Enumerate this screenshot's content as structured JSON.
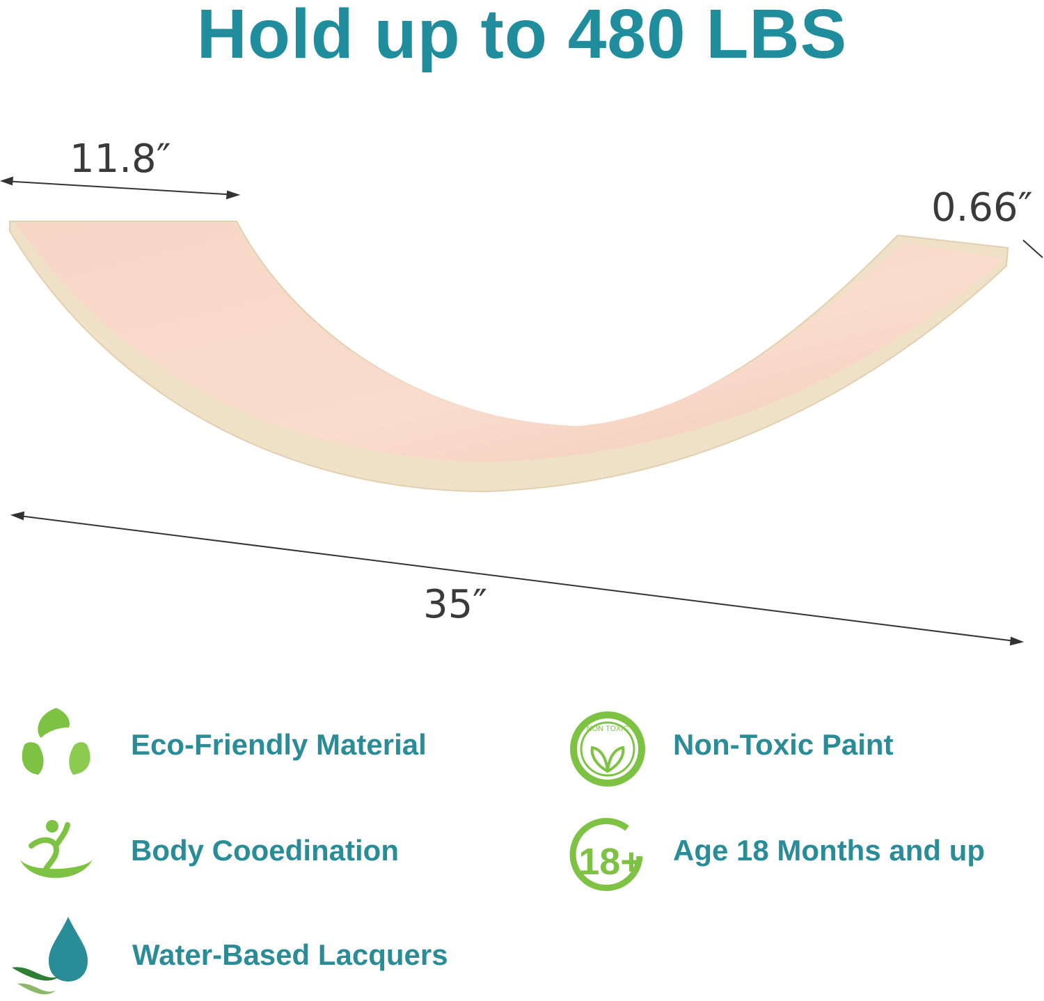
{
  "headline": "Hold up to 480 LBS",
  "dimensions": {
    "width": "11.8″",
    "thickness": "0.66″",
    "length": "35″"
  },
  "features": [
    {
      "label": "Eco-Friendly Material",
      "icon": "recycle-leaf-icon"
    },
    {
      "label": "Non-Toxic Paint",
      "icon": "non-toxic-badge-icon",
      "badge_text": "NON TOXIC"
    },
    {
      "label": "Body Cooedination",
      "icon": "balance-figure-icon"
    },
    {
      "label": "Age 18 Months and up",
      "icon": "age-18-plus-icon",
      "badge_text": "18+"
    },
    {
      "label": "Water-Based Lacquers",
      "icon": "water-drop-icon"
    }
  ],
  "colors": {
    "teal": "#1f8d9b",
    "green": "#7dc242",
    "wood": "#f6d2c2",
    "rim": "#efe3cc"
  }
}
